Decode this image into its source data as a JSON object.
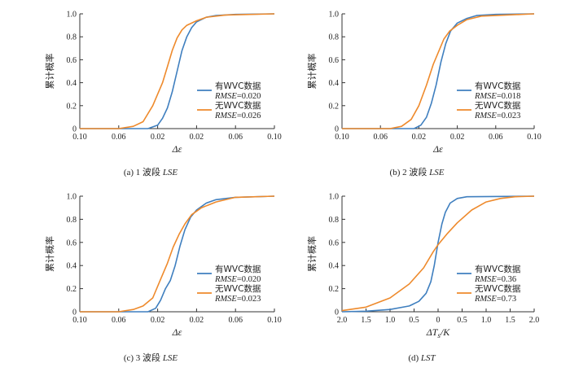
{
  "colors": {
    "with_wvc": "#3f7fbf",
    "without_wvc": "#ee8a2c",
    "axis": "#333333"
  },
  "chart_data": [
    {
      "type": "line",
      "caption_prefix": "(a) 1 波段 ",
      "caption_em": "LSE",
      "xlabel": "Δε",
      "ylabel": "累计概率",
      "xticks": [
        "0.10",
        "0.06",
        "0.02",
        "0.02",
        "0.06",
        "0.10"
      ],
      "yticks": [
        "0",
        "0.2",
        "0.4",
        "0.6",
        "0.8",
        "1.0"
      ],
      "xlim": [
        -0.1,
        0.1
      ],
      "ylim": [
        0,
        1
      ],
      "series": [
        {
          "name": "有WVC数据",
          "metric_label": "RMSE",
          "metric_value": "=0.020",
          "x": [
            -0.1,
            -0.03,
            -0.02,
            -0.015,
            -0.01,
            -0.005,
            0,
            0.005,
            0.01,
            0.015,
            0.02,
            0.03,
            0.04,
            0.06,
            0.1
          ],
          "y": [
            0,
            0,
            0.03,
            0.09,
            0.18,
            0.32,
            0.5,
            0.68,
            0.8,
            0.88,
            0.93,
            0.97,
            0.985,
            0.995,
            1.0
          ]
        },
        {
          "name": "无WVC数据",
          "metric_label": "RMSE",
          "metric_value": "=0.026",
          "x": [
            -0.1,
            -0.06,
            -0.045,
            -0.035,
            -0.025,
            -0.015,
            -0.01,
            -0.005,
            0,
            0.005,
            0.01,
            0.02,
            0.03,
            0.05,
            0.1
          ],
          "y": [
            0,
            0,
            0.02,
            0.06,
            0.2,
            0.4,
            0.54,
            0.68,
            0.79,
            0.86,
            0.9,
            0.94,
            0.97,
            0.99,
            1.0
          ]
        }
      ]
    },
    {
      "type": "line",
      "caption_prefix": "(b) 2 波段 ",
      "caption_em": "LSE",
      "xlabel": "Δε",
      "ylabel": "累计概率",
      "xticks": [
        "0.10",
        "0.06",
        "0.02",
        "0.02",
        "0.06",
        "0.10"
      ],
      "yticks": [
        "0",
        "0.2",
        "0.4",
        "0.6",
        "0.8",
        "1.0"
      ],
      "xlim": [
        -0.1,
        0.1
      ],
      "ylim": [
        0,
        1
      ],
      "series": [
        {
          "name": "有WVC数据",
          "metric_label": "RMSE",
          "metric_value": "=0.018",
          "x": [
            -0.1,
            -0.025,
            -0.018,
            -0.012,
            -0.007,
            -0.002,
            0.003,
            0.008,
            0.013,
            0.02,
            0.03,
            0.04,
            0.06,
            0.1
          ],
          "y": [
            0,
            0,
            0.03,
            0.1,
            0.22,
            0.38,
            0.58,
            0.74,
            0.85,
            0.92,
            0.96,
            0.985,
            0.995,
            1.0
          ]
        },
        {
          "name": "无WVC数据",
          "metric_label": "RMSE",
          "metric_value": "=0.023",
          "x": [
            -0.1,
            -0.05,
            -0.038,
            -0.028,
            -0.02,
            -0.012,
            -0.005,
            0,
            0.006,
            0.012,
            0.02,
            0.03,
            0.045,
            0.1
          ],
          "y": [
            0,
            0,
            0.02,
            0.08,
            0.2,
            0.38,
            0.56,
            0.66,
            0.78,
            0.85,
            0.9,
            0.95,
            0.98,
            1.0
          ]
        }
      ]
    },
    {
      "type": "line",
      "caption_prefix": "(c) 3 波段 ",
      "caption_em": "LSE",
      "xlabel": "Δε",
      "ylabel": "累计概率",
      "xticks": [
        "0.10",
        "0.06",
        "0.02",
        "0.02",
        "0.06",
        "0.10"
      ],
      "yticks": [
        "0",
        "0.2",
        "0.4",
        "0.6",
        "0.8",
        "1.0"
      ],
      "xlim": [
        -0.1,
        0.1
      ],
      "ylim": [
        0,
        1
      ],
      "series": [
        {
          "name": "有WVC数据",
          "metric_label": "RMSE",
          "metric_value": "=0.020",
          "x": [
            -0.1,
            -0.03,
            -0.022,
            -0.017,
            -0.012,
            -0.007,
            -0.002,
            0.003,
            0.008,
            0.014,
            0.02,
            0.03,
            0.04,
            0.06,
            0.1
          ],
          "y": [
            0,
            0,
            0.03,
            0.1,
            0.2,
            0.27,
            0.4,
            0.57,
            0.71,
            0.82,
            0.88,
            0.94,
            0.97,
            0.99,
            1.0
          ]
        },
        {
          "name": "无WVC数据",
          "metric_label": "RMSE",
          "metric_value": "=0.023",
          "x": [
            -0.1,
            -0.06,
            -0.045,
            -0.035,
            -0.025,
            -0.017,
            -0.01,
            -0.004,
            0.002,
            0.008,
            0.015,
            0.025,
            0.04,
            0.06,
            0.1
          ],
          "y": [
            0,
            0,
            0.02,
            0.05,
            0.12,
            0.28,
            0.42,
            0.56,
            0.67,
            0.76,
            0.84,
            0.9,
            0.95,
            0.99,
            1.0
          ]
        }
      ]
    },
    {
      "type": "line",
      "caption_prefix": "(d) ",
      "caption_em": "LST",
      "xlabel": "ΔTs/K",
      "ylabel": "累计概率",
      "xticks": [
        "2.0",
        "1.5",
        "1.0",
        "0.5",
        "0",
        "0.5",
        "1.0",
        "1.5",
        "2.0"
      ],
      "yticks": [
        "0",
        "0.2",
        "0.4",
        "0.6",
        "0.8",
        "1.0"
      ],
      "xlim": [
        -2.0,
        2.0
      ],
      "ylim": [
        0,
        1
      ],
      "series": [
        {
          "name": "有WVC数据",
          "metric_label": "RMSE",
          "metric_value": "=0.36",
          "x": [
            -2.0,
            -1.5,
            -1.0,
            -0.6,
            -0.4,
            -0.25,
            -0.15,
            -0.08,
            0,
            0.08,
            0.15,
            0.25,
            0.4,
            0.6,
            2.0
          ],
          "y": [
            0,
            0.005,
            0.02,
            0.05,
            0.09,
            0.16,
            0.26,
            0.4,
            0.6,
            0.76,
            0.86,
            0.94,
            0.98,
            0.995,
            1.0
          ]
        },
        {
          "name": "无WVC数据",
          "metric_label": "RMSE",
          "metric_value": "=0.73",
          "x": [
            -2.0,
            -1.5,
            -1.0,
            -0.6,
            -0.3,
            -0.1,
            0,
            0.2,
            0.4,
            0.7,
            1.0,
            1.3,
            1.6,
            2.0
          ],
          "y": [
            0.01,
            0.04,
            0.12,
            0.24,
            0.38,
            0.52,
            0.58,
            0.68,
            0.77,
            0.88,
            0.95,
            0.98,
            0.995,
            1.0
          ]
        }
      ]
    }
  ]
}
